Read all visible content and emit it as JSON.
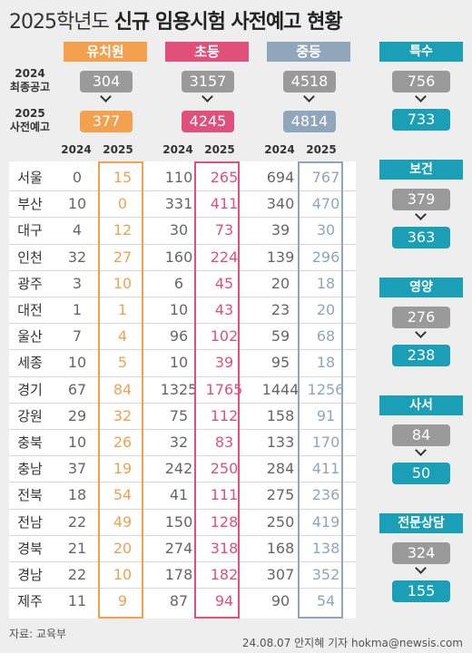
{
  "title_normal": "2025학년도 ",
  "title_bold": "신규 임용시험 사전예고 현황",
  "row_labels": {
    "y2024_year": "2024",
    "y2024_text": "최종공고",
    "y2025_year": "2025",
    "y2025_text": "사전예고"
  },
  "year_labels": [
    "2024",
    "2025"
  ],
  "colors": {
    "kinder": "#f3a04f",
    "elementary": "#e0507a",
    "secondary": "#8fa6bb",
    "special": "#1b9fb6",
    "gray": "#9a9a9a"
  },
  "chart_data": {
    "type": "table",
    "title": "2025학년도 신규 임용시험 사전예고 현황",
    "main_groups": [
      {
        "key": "kinder",
        "name": "유치원",
        "total_2024": 304,
        "total_2025": 377
      },
      {
        "key": "elementary",
        "name": "초등",
        "total_2024": 3157,
        "total_2025": 4245
      },
      {
        "key": "secondary",
        "name": "중등",
        "total_2024": 4518,
        "total_2025": 4814
      }
    ],
    "regions": [
      {
        "name": "서울",
        "kinder": [
          0,
          15
        ],
        "elementary": [
          110,
          265
        ],
        "secondary": [
          694,
          767
        ]
      },
      {
        "name": "부산",
        "kinder": [
          10,
          0
        ],
        "elementary": [
          331,
          411
        ],
        "secondary": [
          340,
          470
        ]
      },
      {
        "name": "대구",
        "kinder": [
          4,
          12
        ],
        "elementary": [
          30,
          73
        ],
        "secondary": [
          39,
          30
        ]
      },
      {
        "name": "인천",
        "kinder": [
          32,
          27
        ],
        "elementary": [
          160,
          224
        ],
        "secondary": [
          139,
          296
        ]
      },
      {
        "name": "광주",
        "kinder": [
          3,
          10
        ],
        "elementary": [
          6,
          45
        ],
        "secondary": [
          20,
          18
        ]
      },
      {
        "name": "대전",
        "kinder": [
          1,
          1
        ],
        "elementary": [
          10,
          43
        ],
        "secondary": [
          23,
          20
        ]
      },
      {
        "name": "울산",
        "kinder": [
          7,
          4
        ],
        "elementary": [
          96,
          102
        ],
        "secondary": [
          59,
          68
        ]
      },
      {
        "name": "세종",
        "kinder": [
          10,
          5
        ],
        "elementary": [
          10,
          39
        ],
        "secondary": [
          95,
          18
        ]
      },
      {
        "name": "경기",
        "kinder": [
          67,
          84
        ],
        "elementary": [
          1325,
          1765
        ],
        "secondary": [
          1444,
          1256
        ]
      },
      {
        "name": "강원",
        "kinder": [
          29,
          32
        ],
        "elementary": [
          75,
          112
        ],
        "secondary": [
          158,
          91
        ]
      },
      {
        "name": "충북",
        "kinder": [
          10,
          26
        ],
        "elementary": [
          32,
          83
        ],
        "secondary": [
          133,
          170
        ]
      },
      {
        "name": "충남",
        "kinder": [
          37,
          19
        ],
        "elementary": [
          242,
          250
        ],
        "secondary": [
          284,
          411
        ]
      },
      {
        "name": "전북",
        "kinder": [
          18,
          54
        ],
        "elementary": [
          41,
          111
        ],
        "secondary": [
          275,
          236
        ]
      },
      {
        "name": "전남",
        "kinder": [
          22,
          49
        ],
        "elementary": [
          150,
          128
        ],
        "secondary": [
          250,
          419
        ]
      },
      {
        "name": "경북",
        "kinder": [
          21,
          20
        ],
        "elementary": [
          274,
          318
        ],
        "secondary": [
          168,
          138
        ]
      },
      {
        "name": "경남",
        "kinder": [
          22,
          10
        ],
        "elementary": [
          178,
          182
        ],
        "secondary": [
          307,
          352
        ]
      },
      {
        "name": "제주",
        "kinder": [
          11,
          9
        ],
        "elementary": [
          87,
          94
        ],
        "secondary": [
          90,
          54
        ]
      }
    ],
    "special_groups": [
      {
        "name": "특수",
        "total_2024": 756,
        "total_2025": 733
      },
      {
        "name": "보건",
        "total_2024": 379,
        "total_2025": 363
      },
      {
        "name": "영양",
        "total_2024": 276,
        "total_2025": 238
      },
      {
        "name": "사서",
        "total_2024": 84,
        "total_2025": 50
      },
      {
        "name": "전문상담",
        "total_2024": 324,
        "total_2025": 155
      }
    ]
  },
  "source": "자료: 교육부",
  "credit": "24.08.07 안지혜 기자 hokma@newsis.com"
}
